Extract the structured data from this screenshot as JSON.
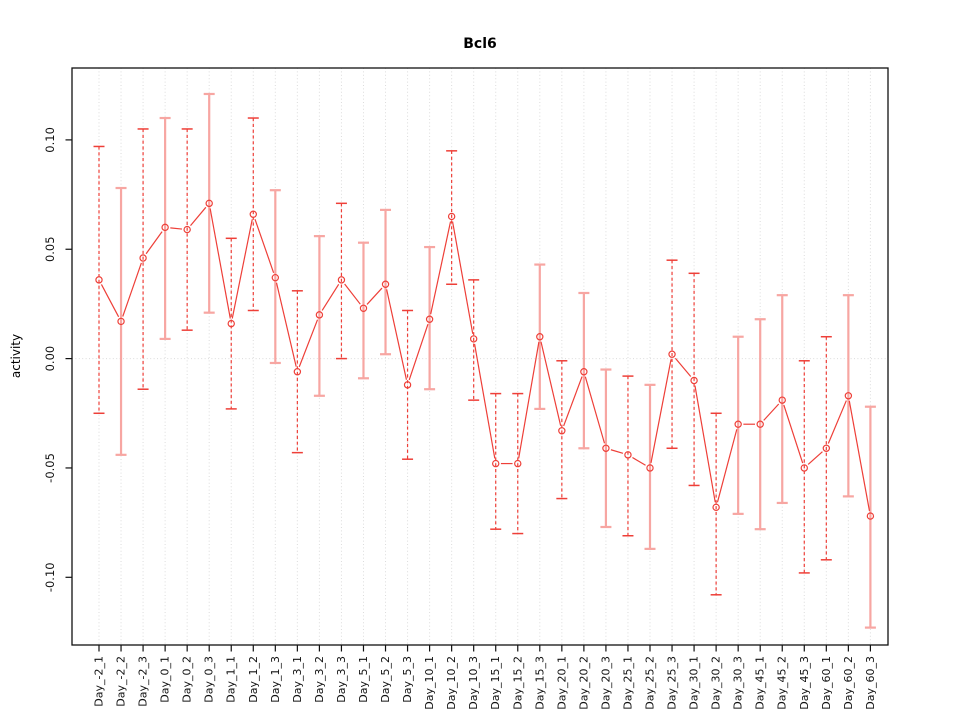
{
  "chart_data": {
    "type": "line",
    "title": "Bcl6",
    "ylabel": "activity",
    "xlabel": "",
    "legend_position": "none",
    "grid": {
      "vertical_dotted_per_category": true,
      "zero_line_dotted": true
    },
    "ylim": [
      -0.132,
      0.133
    ],
    "yticks": [
      {
        "label": "0.10",
        "value": 0.1
      },
      {
        "label": "0.05",
        "value": 0.05
      },
      {
        "label": "0.00",
        "value": 0.0
      },
      {
        "label": "-0.05",
        "value": -0.05
      },
      {
        "label": "-0.10",
        "value": -0.1
      }
    ],
    "categories": [
      "Day_-2_1",
      "Day_-2_2",
      "Day_-2_3",
      "Day_0_1",
      "Day_0_2",
      "Day_0_3",
      "Day_1_1",
      "Day_1_2",
      "Day_1_3",
      "Day_3_1",
      "Day_3_2",
      "Day_3_3",
      "Day_5_1",
      "Day_5_2",
      "Day_5_3",
      "Day_10_1",
      "Day_10_2",
      "Day_10_3",
      "Day_15_1",
      "Day_15_2",
      "Day_15_3",
      "Day_20_1",
      "Day_20_2",
      "Day_20_3",
      "Day_25_1",
      "Day_25_2",
      "Day_25_3",
      "Day_30_1",
      "Day_30_2",
      "Day_30_3",
      "Day_45_1",
      "Day_45_2",
      "Day_45_3",
      "Day_60_1",
      "Day_60_2",
      "Day_60_3"
    ],
    "series": [
      {
        "name": "activity",
        "marker": "open-circle",
        "values": [
          0.036,
          0.017,
          0.046,
          0.06,
          0.059,
          0.071,
          0.016,
          0.066,
          0.037,
          -0.006,
          0.02,
          0.036,
          0.023,
          0.034,
          -0.012,
          0.018,
          0.065,
          0.009,
          -0.048,
          -0.048,
          0.01,
          -0.033,
          -0.006,
          -0.041,
          -0.044,
          -0.05,
          0.002,
          -0.01,
          -0.068,
          -0.03,
          -0.03,
          -0.019,
          -0.05,
          -0.041,
          -0.017,
          -0.072
        ],
        "ci_high": [
          0.097,
          0.078,
          0.105,
          0.11,
          0.105,
          0.121,
          0.055,
          0.11,
          0.077,
          0.031,
          0.056,
          0.071,
          0.053,
          0.068,
          0.022,
          0.051,
          0.095,
          0.036,
          -0.016,
          -0.016,
          0.043,
          -0.001,
          0.03,
          -0.005,
          -0.008,
          -0.012,
          0.045,
          0.039,
          -0.025,
          0.01,
          0.018,
          0.029,
          -0.001,
          0.01,
          0.029,
          -0.022
        ],
        "ci_low": [
          -0.025,
          -0.044,
          -0.014,
          0.009,
          0.013,
          0.021,
          -0.023,
          0.022,
          -0.002,
          -0.043,
          -0.017,
          0.0,
          -0.009,
          0.002,
          -0.046,
          -0.014,
          0.034,
          -0.019,
          -0.078,
          -0.08,
          -0.023,
          -0.064,
          -0.041,
          -0.077,
          -0.081,
          -0.087,
          -0.041,
          -0.058,
          -0.108,
          -0.071,
          -0.078,
          -0.066,
          -0.098,
          -0.092,
          -0.063,
          -0.123
        ],
        "error_bar_styles": [
          "dashed",
          "solid",
          "dashed",
          "solid",
          "dashed",
          "solid",
          "dashed",
          "dashed",
          "solid",
          "dashed",
          "solid",
          "dashed",
          "solid",
          "solid",
          "dashed",
          "solid",
          "dashed",
          "dashed",
          "dashed",
          "dashed",
          "solid",
          "dashed",
          "solid",
          "solid",
          "dashed",
          "solid",
          "dashed",
          "dashed",
          "dashed",
          "solid",
          "solid",
          "solid",
          "dashed",
          "dashed",
          "solid",
          "solid"
        ]
      }
    ],
    "colors": {
      "series_red": "#ee3f38",
      "ci_solid_pink": "#f7a6a2",
      "grid": "#dcdcdc",
      "axis": "#111111",
      "background": "#ffffff"
    }
  }
}
